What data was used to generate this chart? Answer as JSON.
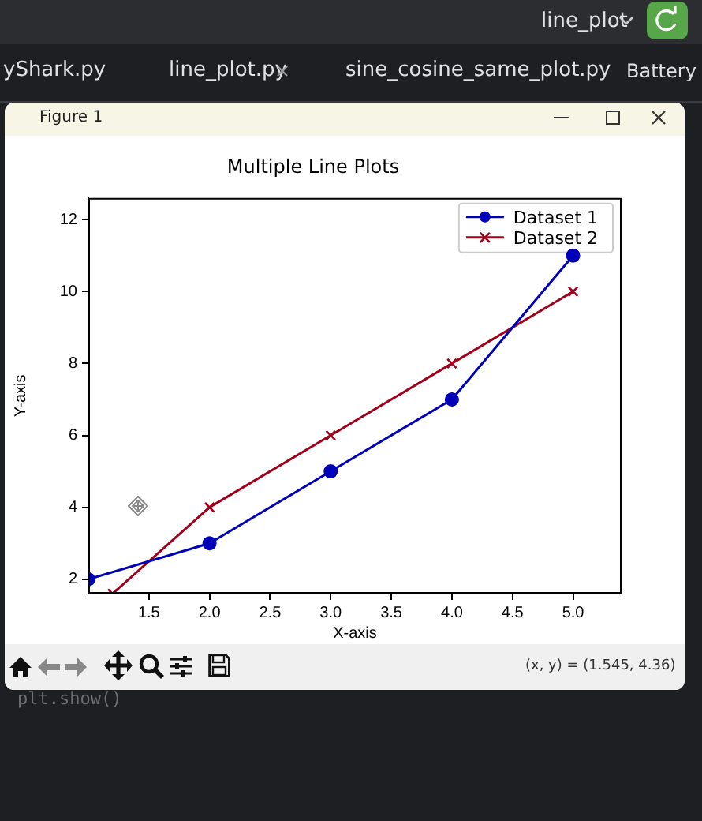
{
  "chart_data": {
    "type": "line",
    "title": "Multiple Line Plots",
    "xlabel": "X-axis",
    "ylabel": "Y-axis",
    "x": [
      1,
      2,
      3,
      4,
      5
    ],
    "series": [
      {
        "name": "Dataset 1",
        "color": "#0000b8",
        "values": [
          2,
          3,
          5,
          7,
          11
        ],
        "marker": "circle"
      },
      {
        "name": "Dataset 2",
        "color": "#a0001a",
        "x": [
          1.2,
          2,
          3,
          4,
          5
        ],
        "values": [
          1.6,
          4,
          6,
          8,
          10
        ],
        "marker": "cross"
      }
    ],
    "xlim": [
      1.0,
      5.4
    ],
    "xticks": [
      1.5,
      {
        "value": 2,
        "label": "2.0"
      },
      2.5,
      {
        "value": 3,
        "label": "3.0"
      },
      3.5,
      {
        "value": 4,
        "label": "4.0"
      },
      4.5,
      {
        "value": 5,
        "label": "5.0"
      }
    ],
    "ylim": [
      1.6,
      12.6
    ],
    "yticks": [
      2,
      4,
      6,
      8,
      10,
      12
    ],
    "grid": false,
    "legend": "top right",
    "line_style": "solid",
    "annotations": [
      "line_plot",
      "yShark.py",
      "line_plot.py",
      "sine_cosine_same_plot.py",
      "Battery",
      "Figure 1",
      "(x, y) = (1.545, 4.36)",
      "plt.show()"
    ]
  }
}
